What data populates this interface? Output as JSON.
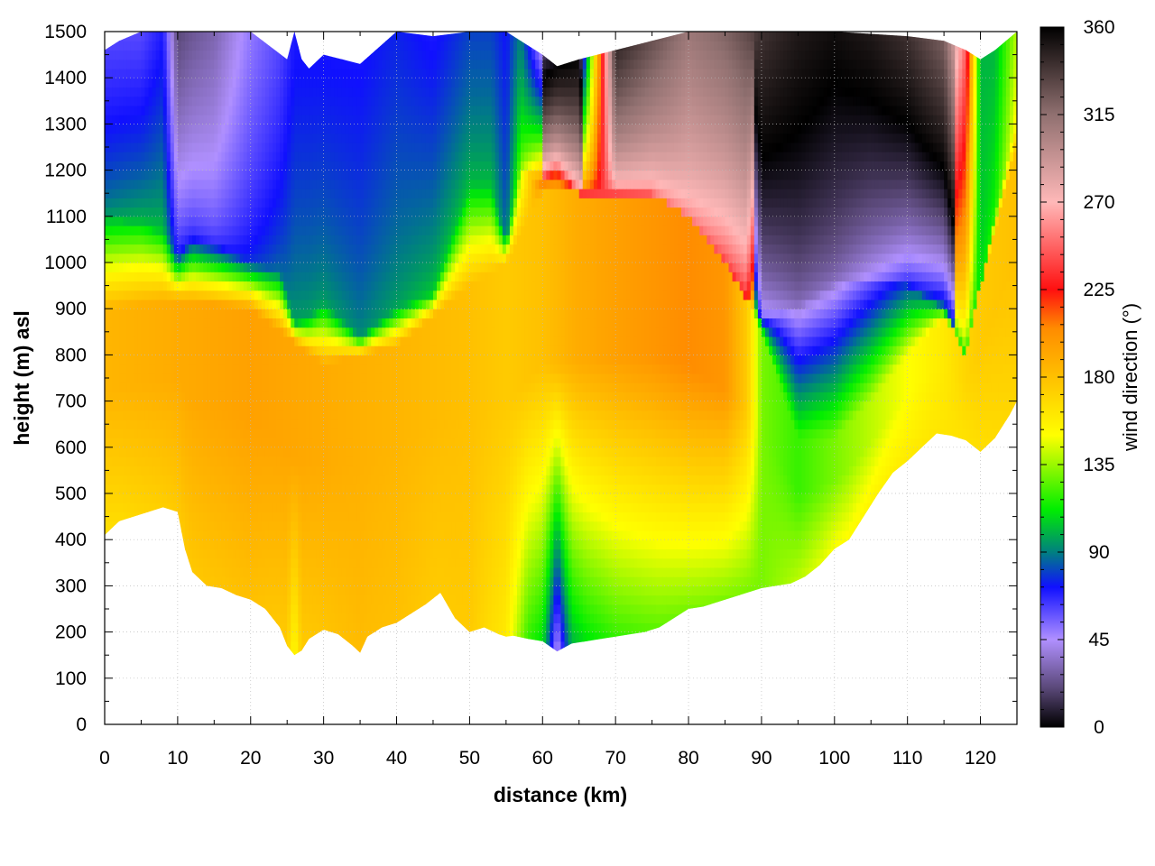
{
  "chart_data": {
    "type": "heatmap",
    "title": "",
    "xlabel": "distance (km)",
    "ylabel": "height (m) asl",
    "colorbar_label": "wind direction (°)",
    "xlim": [
      0,
      125
    ],
    "ylim": [
      0,
      1500
    ],
    "clim": [
      0,
      360
    ],
    "x_ticks": [
      0,
      10,
      20,
      30,
      40,
      50,
      60,
      70,
      80,
      90,
      100,
      110,
      120
    ],
    "y_ticks": [
      0,
      100,
      200,
      300,
      400,
      500,
      600,
      700,
      800,
      900,
      1000,
      1100,
      1200,
      1300,
      1400,
      1500
    ],
    "colorbar_ticks": [
      0,
      45,
      90,
      135,
      180,
      225,
      270,
      315,
      360
    ],
    "grid": true,
    "colormap": [
      {
        "v": 0,
        "c": "#000000"
      },
      {
        "v": 20,
        "c": "#5a4878"
      },
      {
        "v": 45,
        "c": "#b090ff"
      },
      {
        "v": 72,
        "c": "#1010ff"
      },
      {
        "v": 90,
        "c": "#008080"
      },
      {
        "v": 112,
        "c": "#00ee00"
      },
      {
        "v": 150,
        "c": "#ffff00"
      },
      {
        "v": 180,
        "c": "#ffc000"
      },
      {
        "v": 205,
        "c": "#ff8c00"
      },
      {
        "v": 225,
        "c": "#ff1010"
      },
      {
        "v": 270,
        "c": "#ffb8b8"
      },
      {
        "v": 315,
        "c": "#907070"
      },
      {
        "v": 360,
        "c": "#000000"
      }
    ],
    "terrain": {
      "x": [
        0,
        2,
        4,
        6,
        8,
        10,
        11,
        12,
        14,
        16,
        18,
        20,
        22,
        24,
        25,
        26,
        27,
        28,
        30,
        32,
        34,
        35,
        36,
        38,
        40,
        42,
        44,
        46,
        48,
        50,
        52,
        54,
        55,
        56,
        58,
        60,
        62,
        64,
        66,
        68,
        70,
        72,
        74,
        76,
        78,
        80,
        82,
        84,
        86,
        88,
        90,
        92,
        94,
        96,
        98,
        100,
        102,
        104,
        106,
        108,
        110,
        112,
        114,
        116,
        118,
        120,
        122,
        124,
        125
      ],
      "y": [
        410,
        440,
        450,
        460,
        470,
        460,
        380,
        330,
        300,
        295,
        280,
        270,
        250,
        210,
        170,
        150,
        160,
        185,
        205,
        195,
        170,
        155,
        190,
        210,
        220,
        240,
        260,
        285,
        230,
        200,
        210,
        195,
        190,
        192,
        185,
        180,
        158,
        175,
        180,
        185,
        190,
        195,
        200,
        210,
        230,
        250,
        255,
        265,
        275,
        285,
        295,
        300,
        305,
        320,
        345,
        380,
        400,
        450,
        500,
        545,
        570,
        600,
        630,
        625,
        615,
        590,
        620,
        670,
        700
      ]
    },
    "top_boundary": {
      "x": [
        0,
        2,
        5,
        10,
        15,
        20,
        25,
        26,
        27,
        28,
        30,
        35,
        40,
        45,
        50,
        55,
        60,
        62,
        65,
        70,
        75,
        80,
        90,
        100,
        110,
        115,
        118,
        120,
        122,
        125
      ],
      "y": [
        1460,
        1480,
        1500,
        1500,
        1500,
        1500,
        1440,
        1500,
        1440,
        1420,
        1450,
        1430,
        1500,
        1490,
        1500,
        1500,
        1450,
        1425,
        1440,
        1460,
        1480,
        1500,
        1500,
        1500,
        1490,
        1480,
        1460,
        1440,
        1460,
        1500
      ]
    },
    "layers": {
      "upper": {
        "x": [
          0,
          5,
          8,
          10,
          12,
          15,
          20,
          24,
          26,
          28,
          30,
          35,
          40,
          45,
          50,
          53,
          55,
          57,
          60,
          62,
          65,
          70,
          75,
          80,
          85,
          88,
          90,
          95,
          100,
          105,
          110,
          115,
          118,
          120,
          122,
          125
        ],
        "base": [
          1100,
          1080,
          1060,
          1010,
          1050,
          1040,
          1000,
          980,
          870,
          880,
          910,
          840,
          900,
          930,
          1150,
          1150,
          1050,
          1200,
          1180,
          1200,
          1150,
          1150,
          1150,
          1100,
          1000,
          920,
          880,
          900,
          950,
          950,
          950,
          900,
          800,
          950,
          1100,
          1300
        ],
        "top_dir": [
          60,
          60,
          70,
          20,
          25,
          30,
          50,
          60,
          70,
          70,
          70,
          70,
          75,
          70,
          80,
          80,
          72,
          90,
          30,
          20,
          10,
          350,
          330,
          310,
          320,
          330,
          340,
          350,
          355,
          350,
          340,
          320,
          250,
          100,
          100,
          140
        ],
        "low_dir": [
          100,
          110,
          110,
          80,
          75,
          70,
          80,
          90,
          100,
          100,
          100,
          95,
          100,
          110,
          110,
          110,
          90,
          140,
          220,
          225,
          235,
          240,
          245,
          250,
          230,
          220,
          60,
          40,
          40,
          60,
          80,
          100,
          110,
          110,
          120,
          160
        ]
      },
      "lower": {
        "x": [
          0,
          10,
          20,
          25,
          26,
          27,
          30,
          35,
          40,
          45,
          50,
          55,
          58,
          60,
          61,
          62,
          63,
          64,
          66,
          70,
          75,
          80,
          85,
          90,
          95,
          100,
          110,
          120,
          125
        ],
        "dir": [
          165,
          175,
          180,
          175,
          150,
          175,
          178,
          182,
          180,
          175,
          175,
          160,
          120,
          110,
          80,
          40,
          75,
          100,
          110,
          120,
          125,
          130,
          130,
          130,
          140,
          150,
          160,
          165,
          170
        ]
      },
      "mid_layer": {
        "x": [
          0,
          10,
          20,
          30,
          40,
          50,
          55,
          60,
          65,
          70,
          75,
          80,
          85,
          88,
          90,
          95,
          100,
          105,
          110,
          115,
          118,
          120,
          125
        ],
        "dir": [
          185,
          190,
          195,
          190,
          185,
          180,
          175,
          180,
          190,
          195,
          200,
          205,
          200,
          175,
          130,
          120,
          130,
          140,
          150,
          160,
          170,
          175,
          180
        ],
        "top": [
          900,
          920,
          900,
          780,
          820,
          950,
          1000,
          1150,
          1150,
          1150,
          1150,
          1100,
          1000,
          920,
          850,
          620,
          620,
          700,
          800,
          880,
          820,
          950,
          1250
        ]
      }
    }
  }
}
